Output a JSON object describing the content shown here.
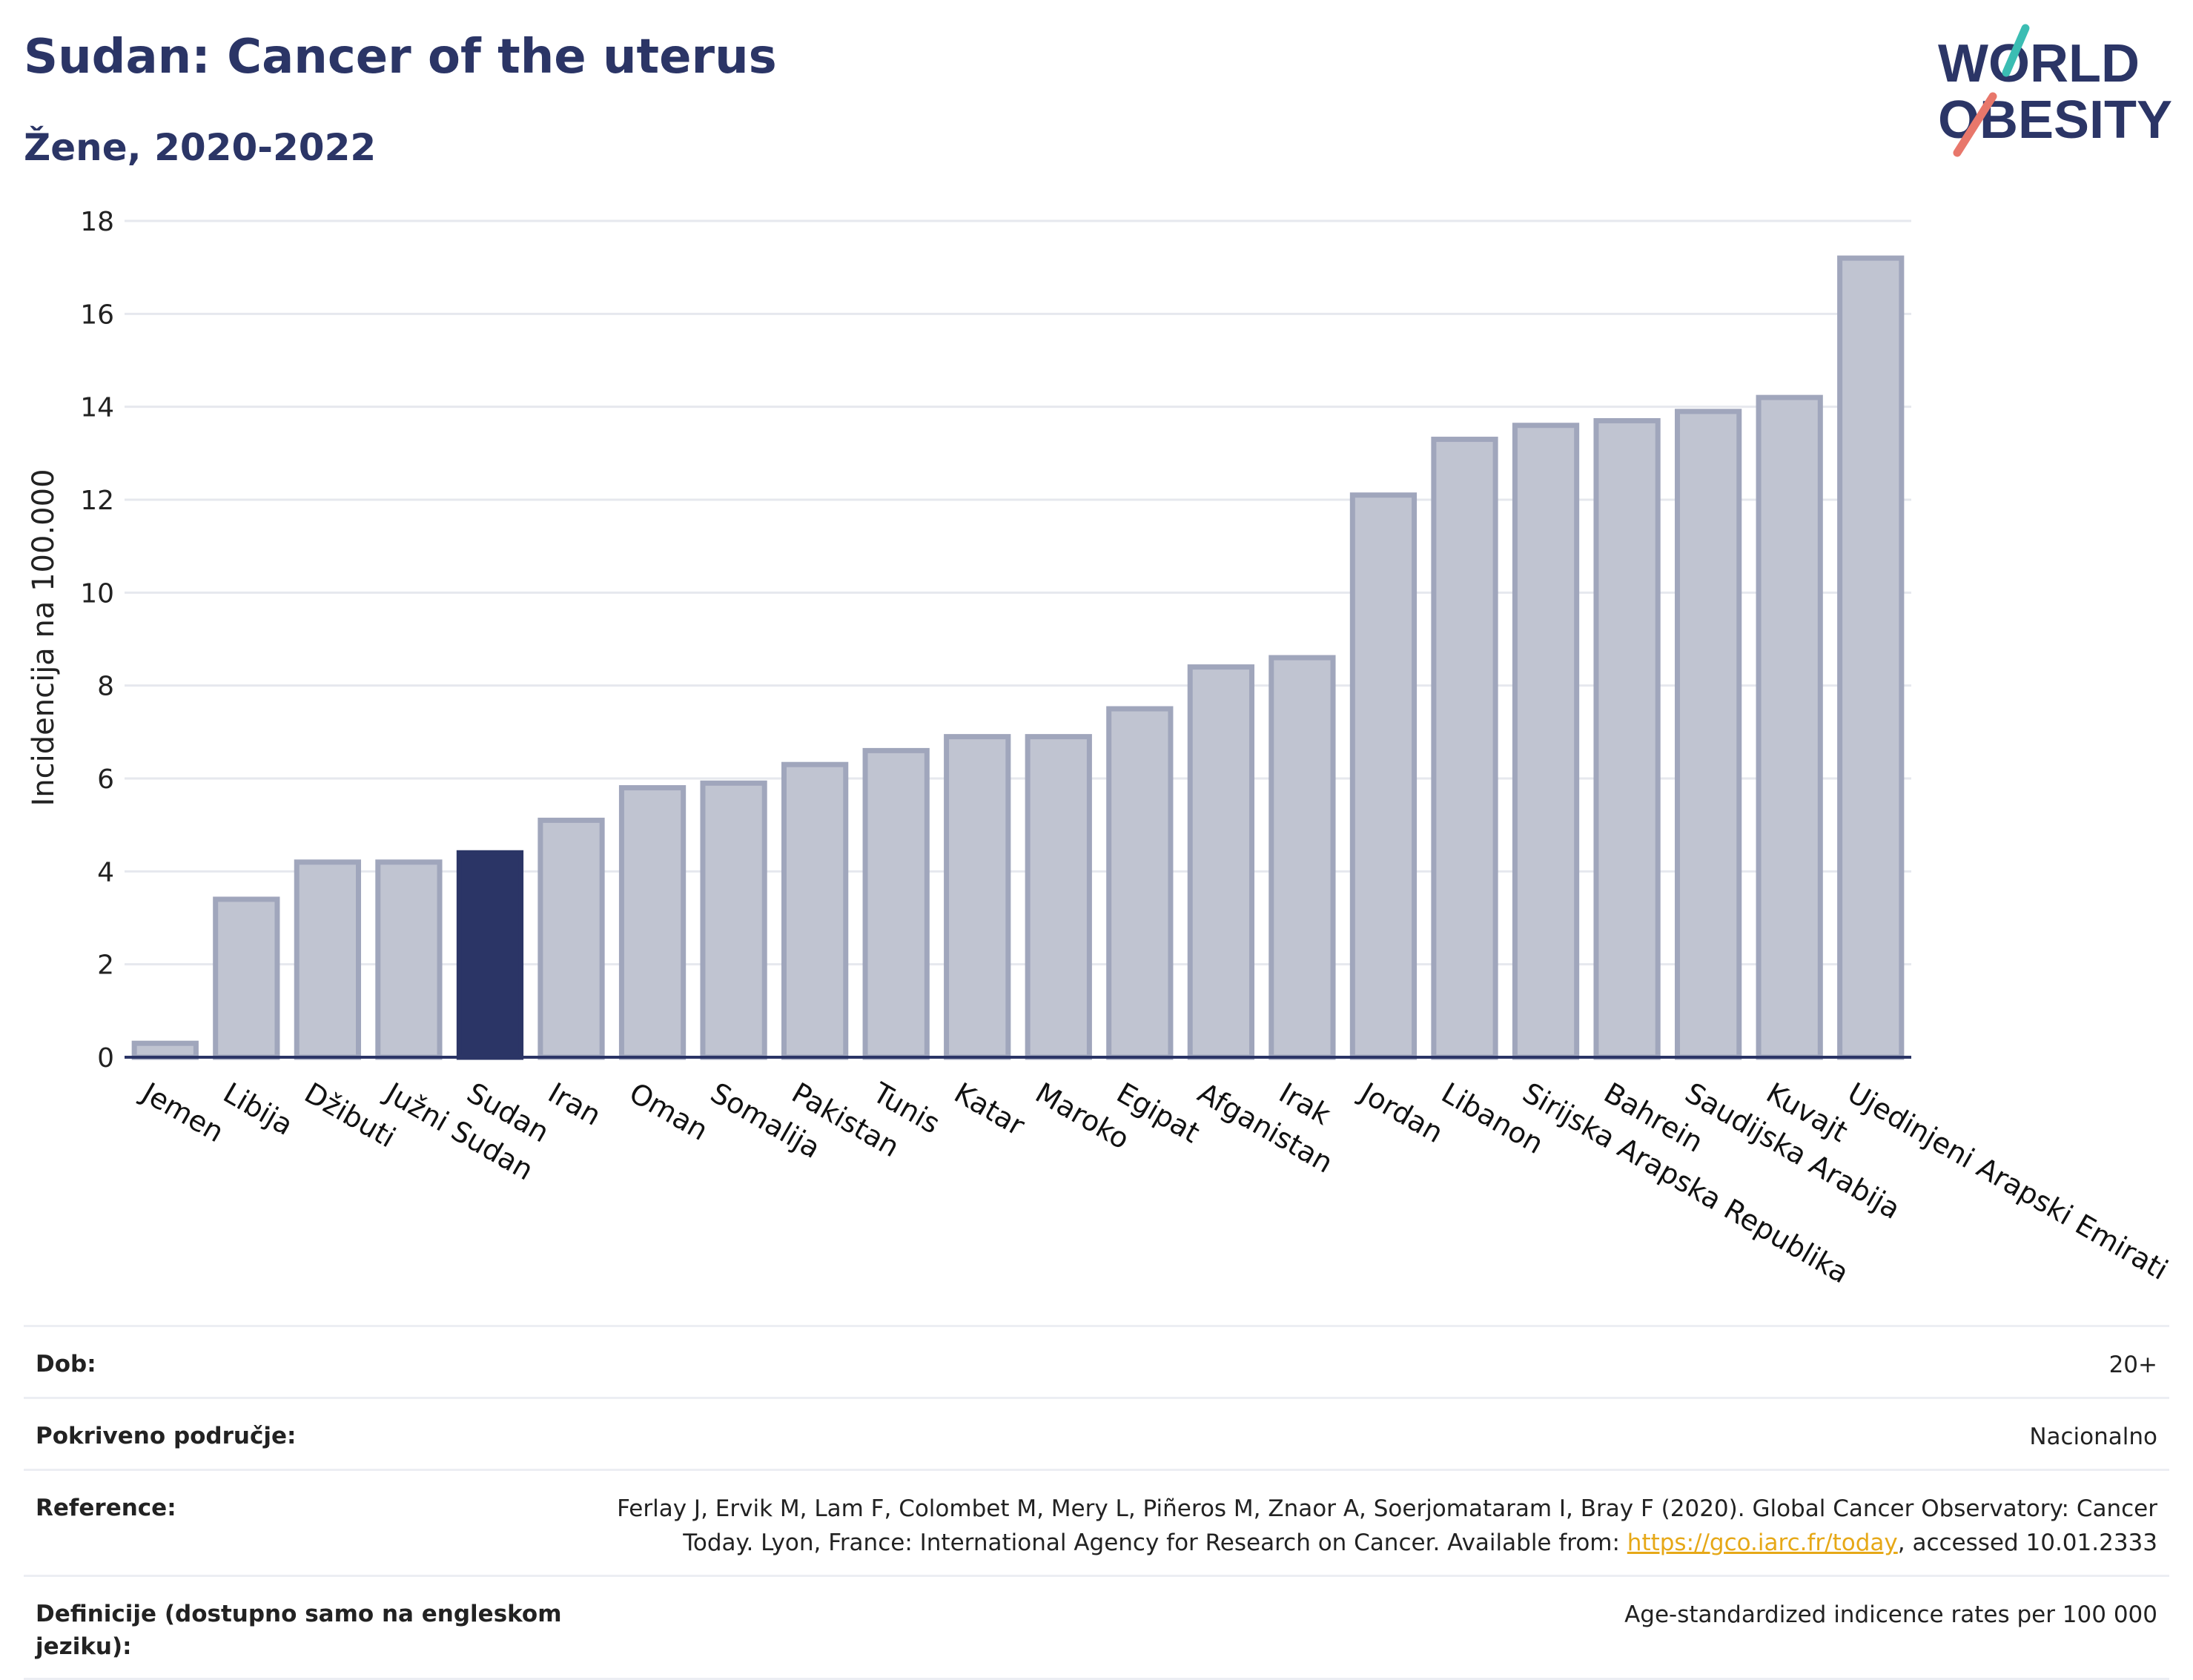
{
  "header": {
    "title": "Sudan: Cancer of the uterus",
    "subtitle": "Žene, 2020-2022"
  },
  "logo": {
    "line1": "WORLD",
    "line2": "OBESITY"
  },
  "colors": {
    "highlight": "#2b3566",
    "bar": "#c0c4d1",
    "bar_border": "#a0a6bc",
    "title": "#2b3566",
    "link": "#e6a817"
  },
  "chart_data": {
    "type": "bar",
    "ylabel": "Incidencija na 100.000",
    "ylim": [
      0,
      18
    ],
    "yticks": [
      0,
      2,
      4,
      6,
      8,
      10,
      12,
      14,
      16,
      18
    ],
    "grid": true,
    "categories": [
      "Jemen",
      "Libija",
      "Džibuti",
      "Južni Sudan",
      "Sudan",
      "Iran",
      "Oman",
      "Somalija",
      "Pakistan",
      "Tunis",
      "Katar",
      "Maroko",
      "Egipat",
      "Afganistan",
      "Irak",
      "Jordan",
      "Libanon",
      "Sirijska Arapska Republika",
      "Bahrein",
      "Saudijska Arabija",
      "Kuvajt",
      "Ujedinjeni Arapski Emirati"
    ],
    "values": [
      0.3,
      3.4,
      4.2,
      4.2,
      4.4,
      5.1,
      5.8,
      5.9,
      6.3,
      6.6,
      6.9,
      6.9,
      7.5,
      8.4,
      8.6,
      12.1,
      13.3,
      13.6,
      13.7,
      13.9,
      14.2,
      17.2
    ],
    "highlight": "Sudan"
  },
  "info": {
    "rows": [
      {
        "label": "Dob:",
        "value": "20+"
      },
      {
        "label": "Pokriveno područje:",
        "value": "Nacionalno"
      },
      {
        "label": "Reference:",
        "value_pre": "Ferlay J, Ervik M, Lam F, Colombet M, Mery L, Piñeros M, Znaor A, Soerjomataram I, Bray F (2020). Global Cancer Observatory: Cancer Today. Lyon, France: International Agency for Research on Cancer. Available from: ",
        "link": "https://gco.iarc.fr/today",
        "value_post": ", accessed 10.01.2333"
      },
      {
        "label": "Definicije (dostupno samo na engleskom jeziku):",
        "value": "Age-standardized indicence rates per 100 000"
      }
    ]
  }
}
